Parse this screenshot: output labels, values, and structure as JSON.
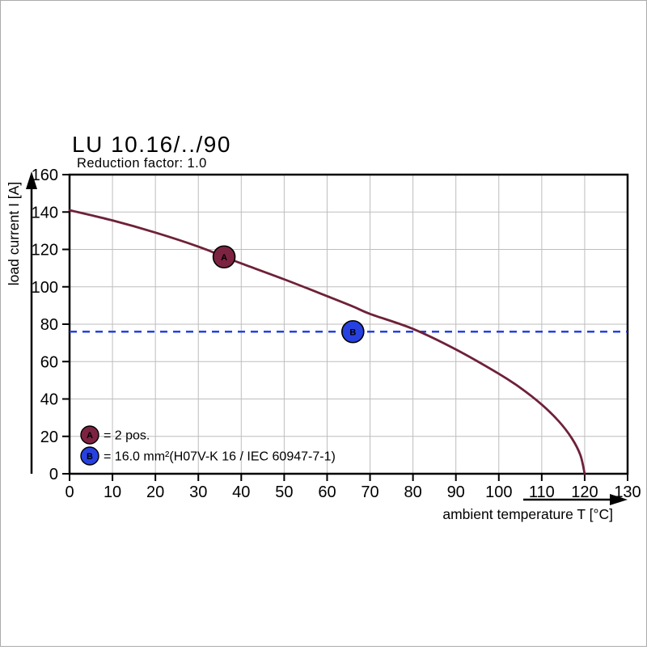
{
  "chart_data": {
    "type": "line",
    "title": "LU 10.16/../90",
    "subtitle": "Reduction factor: 1.0",
    "xlabel": "ambient temperature T [°C]",
    "ylabel": "load current I [A]",
    "xlim": [
      0,
      130
    ],
    "x_tick_step": 10,
    "ylim": [
      0,
      160
    ],
    "y_tick_step": 20,
    "grid": true,
    "colors": {
      "curve": "#6e2138",
      "marker_a": "#7c2342",
      "reference_blue": "#2741e0",
      "grid": "#bdbdbd",
      "axis": "#000000",
      "background": "#ffffff"
    },
    "series": [
      {
        "name": "derating curve",
        "color": "#6e2138",
        "points": [
          [
            0,
            141
          ],
          [
            10,
            135.5
          ],
          [
            20,
            129
          ],
          [
            30,
            121.5
          ],
          [
            36,
            116
          ],
          [
            40,
            112.5
          ],
          [
            50,
            104
          ],
          [
            60,
            95
          ],
          [
            66,
            89.5
          ],
          [
            70,
            85.5
          ],
          [
            80,
            77.5
          ],
          [
            90,
            66.5
          ],
          [
            100,
            53.5
          ],
          [
            105,
            46
          ],
          [
            110,
            37
          ],
          [
            114,
            28
          ],
          [
            117,
            19
          ],
          [
            119,
            10
          ],
          [
            120,
            0
          ]
        ]
      }
    ],
    "reference_line": {
      "y": 76,
      "color": "#2741e0",
      "style": "dashed"
    },
    "point_markers": [
      {
        "label": "A",
        "x": 36,
        "y": 116,
        "fill": "#7c2342"
      },
      {
        "label": "B",
        "x": 66,
        "y": 76,
        "fill": "#2741e0"
      }
    ],
    "legend": [
      {
        "label": "A",
        "fill": "#7c2342",
        "text": "= 2 pos."
      },
      {
        "label": "B",
        "fill": "#2741e0",
        "text": "= 16.0 mm²(H07V-K 16 / IEC 60947-7-1)"
      }
    ]
  }
}
